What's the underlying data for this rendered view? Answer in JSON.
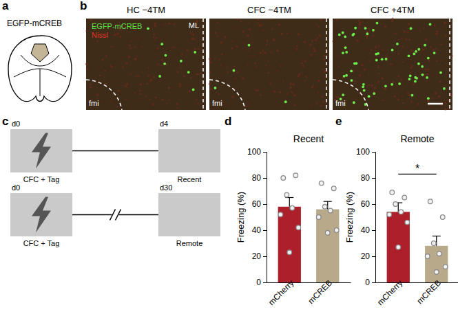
{
  "figure": {
    "panel_labels": [
      "a",
      "b",
      "c",
      "d",
      "e"
    ],
    "a": {
      "title": "EGFP-mCREB"
    },
    "b": {
      "cell_color": "#6cf04e",
      "images": [
        {
          "title": "HC −4TM",
          "cell_count": 9,
          "top_label": "ML",
          "bottom_label": "fmi",
          "channels": [
            {
              "name": "EGFP-mCREB",
              "color": "#5ee04a"
            },
            {
              "name": "Nissl",
              "color": "#e0352b"
            }
          ]
        },
        {
          "title": "CFC −4TM",
          "cell_count": 4,
          "bottom_label": "fmi"
        },
        {
          "title": "CFC +4TM",
          "cell_count": 60,
          "bottom_label": "fmi",
          "scale_bar": true
        }
      ]
    },
    "c": {
      "rows": [
        {
          "start_day": "d0",
          "end_day": "d4",
          "start_label": "CFC + Tag",
          "end_label": "Recent",
          "gap": false
        },
        {
          "start_day": "d0",
          "end_day": "d30",
          "start_label": "CFC + Tag",
          "end_label": "Remote",
          "gap": true
        }
      ]
    }
  },
  "chart_data": [
    {
      "type": "bar",
      "title": "Recent",
      "y_label": "Freezing (%)",
      "categories": [
        "mCherry",
        "mCREB"
      ],
      "values": [
        58,
        56
      ],
      "errors": [
        7,
        6
      ],
      "points": [
        [
          80,
          82,
          67,
          57,
          52,
          42,
          23
        ],
        [
          76,
          72,
          58,
          55,
          50,
          40,
          38
        ]
      ],
      "colors": [
        "#ad1f2b",
        "#b9a98b"
      ],
      "ylim": [
        0,
        100
      ],
      "yticks": [
        0,
        20,
        40,
        60,
        80,
        100
      ]
    },
    {
      "type": "bar",
      "title": "Remote",
      "y_label": "Freezing (%)",
      "categories": [
        "mCherry",
        "mCREB"
      ],
      "values": [
        54,
        28
      ],
      "errors": [
        7,
        7.5
      ],
      "points": [
        [
          69,
          65,
          60,
          54,
          52,
          46,
          27
        ],
        [
          62,
          50,
          30,
          22,
          20,
          12,
          8
        ]
      ],
      "colors": [
        "#ad1f2b",
        "#b9a98b"
      ],
      "ylim": [
        0,
        100
      ],
      "yticks": [
        0,
        20,
        40,
        60,
        80,
        100
      ],
      "annotations": [
        {
          "text": "*",
          "from": "mCherry",
          "to": "mCREB"
        }
      ]
    }
  ]
}
